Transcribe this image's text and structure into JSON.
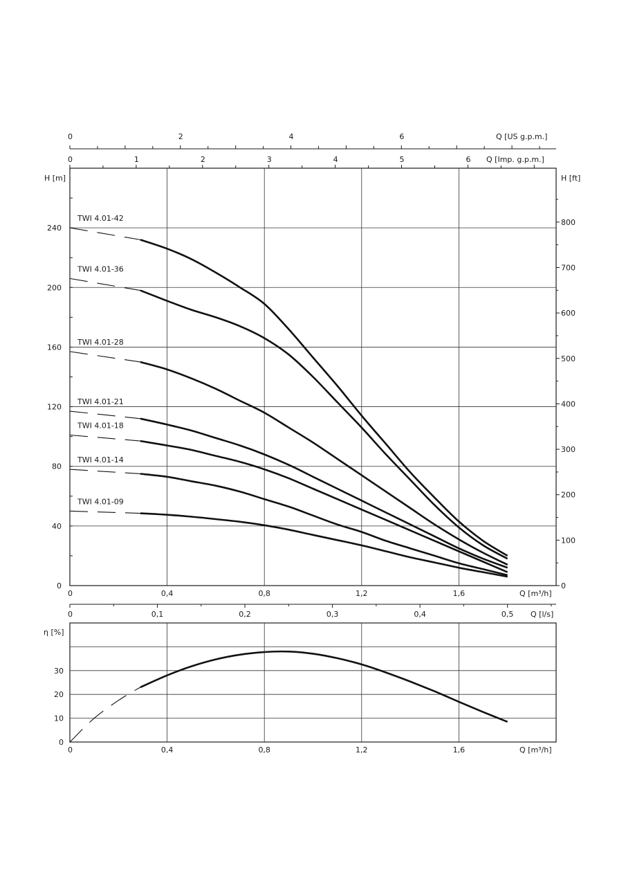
{
  "colors": {
    "line": "#111111",
    "grid": "#333333",
    "background": "#ffffff"
  },
  "chart_data": [
    {
      "type": "line",
      "title": "",
      "xlabel": "Q [m³/h]",
      "ylabel": "H [m]",
      "y2label": "H [ft]",
      "xlim": [
        0,
        2.0
      ],
      "ylim": [
        0,
        280
      ],
      "y2lim": [
        0,
        918.6
      ],
      "x_ticks": [
        "0",
        "0,4",
        "0,8",
        "1,2",
        "1,6"
      ],
      "y_ticks": [
        "0",
        "40",
        "80",
        "120",
        "160",
        "200",
        "240"
      ],
      "y2_ticks": [
        "0",
        "100",
        "200",
        "300",
        "400",
        "500",
        "600",
        "700",
        "800"
      ],
      "grid": true,
      "secondary_x_axes": [
        {
          "label": "Q [US g.p.m.]",
          "ticks": [
            "0",
            "2",
            "4",
            "6"
          ],
          "max": 8.8
        },
        {
          "label": "Q [Imp. g.p.m.]",
          "ticks": [
            "0",
            "1",
            "2",
            "3",
            "4",
            "5",
            "6"
          ],
          "max": 7.33
        },
        {
          "label": "Q [l/s]",
          "ticks": [
            "0",
            "0,1",
            "0,2",
            "0,3",
            "0,4",
            "0,5"
          ],
          "max": 0.5556
        }
      ],
      "dashed_until_x": 0.29,
      "series": [
        {
          "name": "TWI 4.01-42",
          "x": [
            0,
            0.29,
            0.4,
            0.5,
            0.6,
            0.7,
            0.8,
            0.9,
            1.0,
            1.1,
            1.2,
            1.3,
            1.4,
            1.5,
            1.6,
            1.7,
            1.8
          ],
          "values": [
            240,
            232,
            226,
            219,
            210,
            200,
            189,
            172,
            153,
            134,
            114,
            95,
            76,
            59,
            43,
            30,
            20
          ]
        },
        {
          "name": "TWI 4.01-36",
          "x": [
            0,
            0.29,
            0.4,
            0.5,
            0.6,
            0.7,
            0.8,
            0.9,
            1.0,
            1.1,
            1.2,
            1.3,
            1.4,
            1.5,
            1.6,
            1.7,
            1.8
          ],
          "values": [
            206,
            198,
            191,
            185,
            180,
            174,
            166,
            155,
            140,
            123,
            106,
            88,
            71,
            54,
            39,
            27,
            18
          ]
        },
        {
          "name": "TWI 4.01-28",
          "x": [
            0,
            0.29,
            0.4,
            0.5,
            0.6,
            0.7,
            0.8,
            0.9,
            1.0,
            1.1,
            1.2,
            1.3,
            1.4,
            1.5,
            1.6,
            1.7,
            1.8
          ],
          "values": [
            157,
            150,
            145,
            139,
            132,
            124,
            116,
            106,
            96,
            85,
            74,
            63,
            52,
            41,
            31,
            22,
            14
          ]
        },
        {
          "name": "TWI 4.01-21",
          "x": [
            0,
            0.29,
            0.4,
            0.5,
            0.6,
            0.7,
            0.8,
            0.9,
            1.0,
            1.1,
            1.2,
            1.3,
            1.4,
            1.5,
            1.6,
            1.7,
            1.8
          ],
          "values": [
            117,
            112,
            108,
            104,
            99,
            94,
            88,
            81,
            73,
            65,
            57,
            49,
            41,
            33,
            25,
            18,
            12
          ]
        },
        {
          "name": "TWI 4.01-18",
          "x": [
            0,
            0.29,
            0.4,
            0.5,
            0.6,
            0.7,
            0.8,
            0.9,
            1.0,
            1.1,
            1.2,
            1.3,
            1.4,
            1.5,
            1.6,
            1.7,
            1.8
          ],
          "values": [
            101,
            97,
            94,
            91,
            87,
            83,
            78,
            72,
            65,
            58,
            51,
            44,
            37,
            30,
            23,
            16,
            9
          ]
        },
        {
          "name": "TWI 4.01-14",
          "x": [
            0,
            0.29,
            0.4,
            0.5,
            0.6,
            0.7,
            0.8,
            0.9,
            1.0,
            1.1,
            1.2,
            1.3,
            1.4,
            1.5,
            1.6,
            1.7,
            1.8
          ],
          "values": [
            78,
            75,
            73,
            70,
            67,
            63,
            58,
            53,
            47,
            41,
            36,
            30,
            25,
            20,
            15,
            11,
            7
          ]
        },
        {
          "name": "TWI 4.01-09",
          "x": [
            0,
            0.29,
            0.4,
            0.5,
            0.6,
            0.7,
            0.8,
            0.9,
            1.0,
            1.1,
            1.2,
            1.3,
            1.4,
            1.5,
            1.6,
            1.7,
            1.8
          ],
          "values": [
            50,
            48.5,
            47.5,
            46.2,
            44.6,
            42.8,
            40.5,
            37.5,
            34.0,
            30.5,
            27.0,
            23.0,
            19.0,
            15.5,
            12.0,
            9.0,
            6.0
          ]
        }
      ]
    },
    {
      "type": "line",
      "title": "",
      "xlabel": "Q [m³/h]",
      "ylabel": "η [%]",
      "xlim": [
        0,
        2.0
      ],
      "ylim": [
        0,
        50
      ],
      "x_ticks": [
        "0",
        "0,4",
        "0,8",
        "1,2",
        "1,6"
      ],
      "y_ticks": [
        "0",
        "10",
        "20",
        "30"
      ],
      "grid": true,
      "dashed_until_x": 0.29,
      "series": [
        {
          "name": "η",
          "x": [
            0,
            0.1,
            0.2,
            0.29,
            0.4,
            0.5,
            0.6,
            0.7,
            0.8,
            0.9,
            1.0,
            1.1,
            1.2,
            1.3,
            1.4,
            1.5,
            1.6,
            1.7,
            1.8
          ],
          "values": [
            0,
            10,
            17.5,
            23,
            28,
            31.8,
            34.7,
            36.7,
            37.8,
            38.0,
            37.1,
            35.2,
            32.6,
            29.2,
            25.4,
            21.3,
            16.9,
            12.6,
            8.5
          ]
        }
      ]
    }
  ]
}
